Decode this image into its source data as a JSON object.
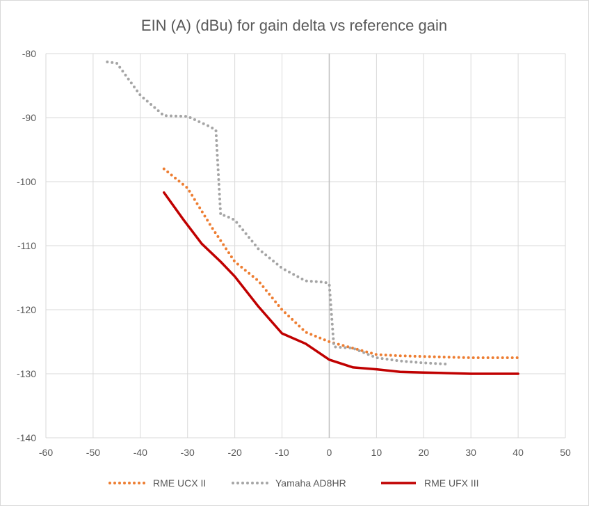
{
  "chart_data": {
    "type": "line",
    "title": "EIN (A) (dBu) for gain delta vs reference gain",
    "xlabel": "",
    "ylabel": "",
    "xlim": [
      -60,
      50
    ],
    "ylim": [
      -140,
      -80
    ],
    "xticks": [
      -60,
      -50,
      -40,
      -30,
      -20,
      -10,
      0,
      10,
      20,
      30,
      40,
      50
    ],
    "yticks": [
      -80,
      -90,
      -100,
      -110,
      -120,
      -130,
      -140
    ],
    "grid": true,
    "legend_position": "bottom",
    "series": [
      {
        "name": "RME UCX II",
        "color": "#ed7d31",
        "style": "dotted",
        "x": [
          -35,
          -30,
          -25,
          -20,
          -15,
          -10,
          -5,
          0,
          5,
          10,
          15,
          20,
          25,
          30,
          35,
          40
        ],
        "y": [
          -98,
          -101,
          -107,
          -112.5,
          -115.5,
          -120,
          -123.5,
          -125,
          -126,
          -127,
          -127.2,
          -127.3,
          -127.4,
          -127.5,
          -127.5,
          -127.5
        ]
      },
      {
        "name": "Yamaha AD8HR",
        "color": "#a5a5a5",
        "style": "dotted",
        "x": [
          -47,
          -45,
          -40,
          -35,
          -30,
          -25,
          -24,
          -23,
          -22,
          -20,
          -15,
          -10,
          -5,
          -1,
          0,
          1,
          5,
          10,
          15,
          20,
          25
        ],
        "y": [
          -81.3,
          -81.5,
          -86.5,
          -89.7,
          -89.8,
          -91.5,
          -92,
          -105.2,
          -105.3,
          -106,
          -110.5,
          -113.5,
          -115.5,
          -115.7,
          -116,
          -125.8,
          -126,
          -127.5,
          -128,
          -128.3,
          -128.5
        ]
      },
      {
        "name": "RME UFX III",
        "color": "#c00000",
        "style": "solid",
        "x": [
          -35,
          -31,
          -27,
          -23,
          -20,
          -15,
          -10,
          -5,
          0,
          5,
          10,
          15,
          20,
          25,
          30,
          35,
          40
        ],
        "y": [
          -101.7,
          -105.8,
          -109.7,
          -112.5,
          -114.8,
          -119.5,
          -123.7,
          -125.3,
          -127.8,
          -129,
          -129.3,
          -129.7,
          -129.8,
          -129.9,
          -130,
          -130,
          -130
        ]
      }
    ]
  }
}
